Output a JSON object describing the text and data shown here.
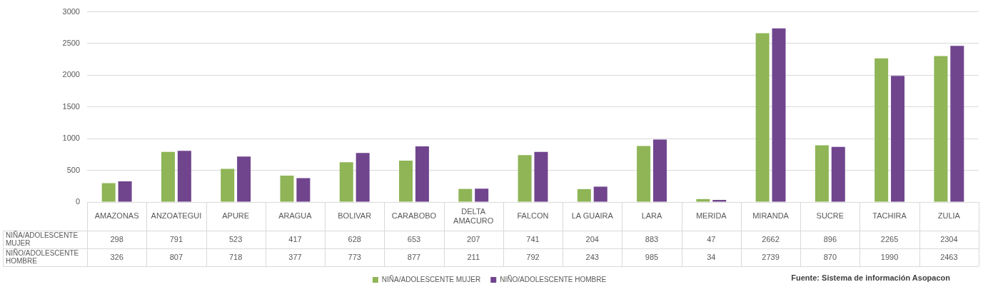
{
  "chart_data": {
    "type": "bar",
    "categories": [
      "AMAZONAS",
      "ANZOATEGUI",
      "APURE",
      "ARAGUA",
      "BOLIVAR",
      "CARABOBO",
      "DELTA AMACURO",
      "FALCON",
      "LA GUAIRA",
      "LARA",
      "MERIDA",
      "MIRANDA",
      "SUCRE",
      "TACHIRA",
      "ZULIA"
    ],
    "series": [
      {
        "name": "NIÑA/ADOLESCENTE MUJER",
        "color": "#8fb557",
        "values": [
          298,
          791,
          523,
          417,
          628,
          653,
          207,
          741,
          204,
          883,
          47,
          2662,
          896,
          2265,
          2304
        ]
      },
      {
        "name": "NIÑO/ADOLESCENTE HOMBRE",
        "color": "#70458e",
        "values": [
          326,
          807,
          718,
          377,
          773,
          877,
          211,
          792,
          243,
          985,
          34,
          2739,
          870,
          1990,
          2463
        ]
      }
    ],
    "ylim": [
      0,
      3000
    ],
    "yticks": [
      0,
      500,
      1000,
      1500,
      2000,
      2500,
      3000
    ],
    "grid": "y",
    "legend": "bottom",
    "data_labels": true,
    "annotations": [
      "Fuente: Sistema de información Asopacon"
    ]
  }
}
